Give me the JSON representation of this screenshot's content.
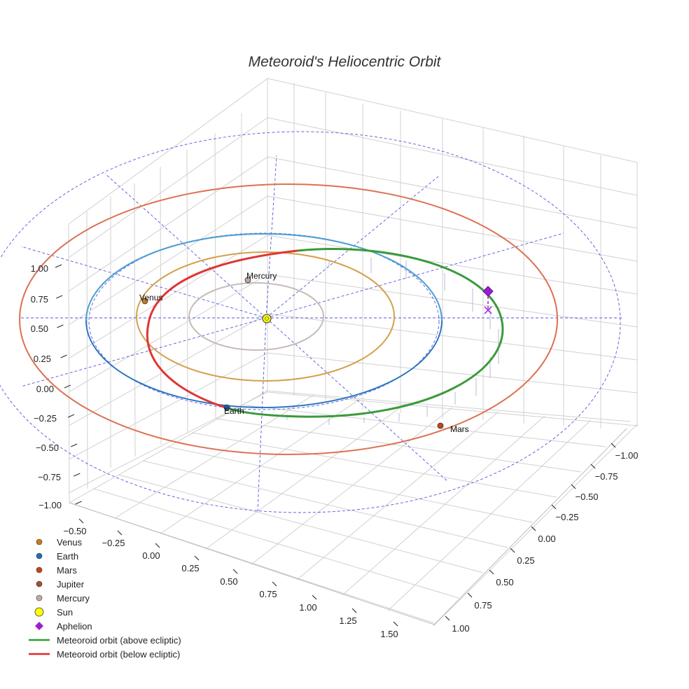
{
  "chart_data": {
    "type": "3d-orbit",
    "title": "Meteoroid's Heliocentric Orbit",
    "axes": {
      "x": {
        "range": [
          -1.0,
          1.0
        ],
        "ticks": [
          "−1.00",
          "−0.75",
          "−0.50",
          "−0.25",
          "0.00",
          "0.25",
          "0.50",
          "0.75",
          "1.00"
        ]
      },
      "y": {
        "range": [
          -0.5,
          1.5
        ],
        "ticks": [
          "−0.50",
          "−0.25",
          "0.00",
          "0.25",
          "0.50",
          "0.75",
          "1.00",
          "1.25",
          "1.50"
        ]
      },
      "z": {
        "range": [
          -1.0,
          1.0
        ],
        "ticks": [
          "1.00",
          "0.75",
          "0.50",
          "0.25",
          "0.00",
          "−0.25",
          "−0.50",
          "−0.75",
          "−1.00"
        ]
      }
    },
    "orbits": [
      {
        "name": "Mercury",
        "radius_au": 0.39,
        "color": "#c8bcb8"
      },
      {
        "name": "Venus",
        "radius_au": 0.72,
        "color": "#d4a04a"
      },
      {
        "name": "Earth",
        "radius_au": 1.0,
        "color": "#4a9fd0"
      },
      {
        "name": "Mars",
        "radius_au": 1.52,
        "color": "#dd7050"
      }
    ],
    "planets": [
      {
        "name": "Venus",
        "label": "Venus",
        "color": "#c77a1e"
      },
      {
        "name": "Earth",
        "label": "Earth",
        "color": "#1f5fa8"
      },
      {
        "name": "Mars",
        "label": "Mars",
        "color": "#c8431a"
      },
      {
        "name": "Mercury",
        "label": "Mercury",
        "color": "#b8a8a8"
      }
    ],
    "meteoroid": {
      "above_color": "#3a9a3a",
      "below_color": "#e03535",
      "aphelion_color": "#9a1ecf"
    },
    "legend": [
      {
        "label": "Venus",
        "marker": "circle",
        "color": "#c77a1e"
      },
      {
        "label": "Earth",
        "marker": "circle",
        "color": "#1f6fb5"
      },
      {
        "label": "Mars",
        "marker": "circle",
        "color": "#c8431a"
      },
      {
        "label": "Jupiter",
        "marker": "circle",
        "color": "#a0522d"
      },
      {
        "label": "Mercury",
        "marker": "circle",
        "color": "#c4aaa4"
      },
      {
        "label": "Sun",
        "marker": "big-circle",
        "color": "#ffff00"
      },
      {
        "label": "Aphelion",
        "marker": "diamond",
        "color": "#9a1ecf"
      },
      {
        "label": "Meteoroid orbit (above ecliptic)",
        "marker": "line",
        "color": "#2ca02c"
      },
      {
        "label": "Meteoroid orbit (below ecliptic)",
        "marker": "line",
        "color": "#e02828"
      }
    ]
  }
}
